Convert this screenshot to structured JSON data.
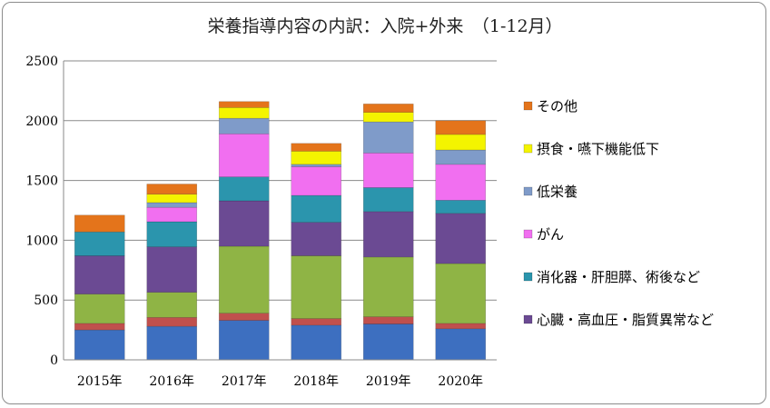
{
  "chart_data": {
    "type": "bar",
    "stacked": true,
    "title": "栄養指導内容の内訳：入院+外来　（1-12月）",
    "categories": [
      "2015年",
      "2016年",
      "2017年",
      "2018年",
      "2019年",
      "2020年"
    ],
    "ylim": [
      0,
      2500
    ],
    "yticks": [
      0,
      500,
      1000,
      1500,
      2000,
      2500
    ],
    "grid": true,
    "legend_position": "right",
    "series": [
      {
        "name": "",
        "color": "#3d6fc0",
        "values": [
          250,
          280,
          330,
          290,
          300,
          260
        ]
      },
      {
        "name": "",
        "color": "#c0504d",
        "values": [
          55,
          75,
          60,
          55,
          60,
          45
        ]
      },
      {
        "name": "",
        "color": "#8fb445",
        "values": [
          245,
          210,
          560,
          525,
          500,
          500
        ]
      },
      {
        "name": "心臓・高血圧・脂質異常など",
        "color": "#6b4a93",
        "values": [
          320,
          380,
          380,
          280,
          380,
          420
        ]
      },
      {
        "name": "消化器・肝胆膵、術後など",
        "color": "#2b95ad",
        "values": [
          200,
          210,
          200,
          225,
          200,
          110
        ]
      },
      {
        "name": "がん",
        "color": "#f16ff0",
        "values": [
          0,
          120,
          360,
          240,
          290,
          300
        ]
      },
      {
        "name": "低栄養",
        "color": "#7f9bc9",
        "values": [
          0,
          40,
          130,
          20,
          260,
          120
        ]
      },
      {
        "name": "摂食・嚥下機能低下",
        "color": "#f4f400",
        "values": [
          0,
          70,
          90,
          110,
          80,
          130
        ]
      },
      {
        "name": "その他",
        "color": "#e4741b",
        "values": [
          140,
          85,
          50,
          65,
          70,
          115
        ]
      }
    ]
  }
}
